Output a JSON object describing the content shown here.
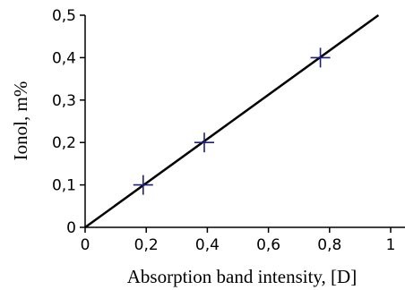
{
  "chart_data": {
    "type": "scatter",
    "title": "",
    "xlabel": "Absorption band intensity, [D]",
    "ylabel": "Ionol, m%",
    "xlim": [
      0,
      1
    ],
    "ylim": [
      0,
      0.5
    ],
    "x_ticks": [
      "0",
      "0,2",
      "0,4",
      "0,6",
      "0,8",
      "1"
    ],
    "y_ticks": [
      "0",
      "0,1",
      "0,2",
      "0,3",
      "0,4",
      "0,5"
    ],
    "grid": false,
    "legend": "none",
    "series": [
      {
        "marker": "plus",
        "color": "#1f1f7a",
        "points": [
          {
            "x": 0.19,
            "y": 0.1
          },
          {
            "x": 0.39,
            "y": 0.2
          },
          {
            "x": 0.77,
            "y": 0.4
          }
        ]
      }
    ],
    "fit_line": {
      "color": "#000000",
      "points": [
        {
          "x": 0,
          "y": 0
        },
        {
          "x": 0.96,
          "y": 0.5
        }
      ]
    }
  }
}
